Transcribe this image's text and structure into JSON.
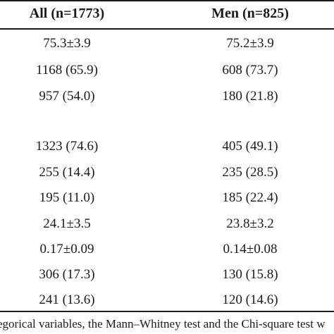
{
  "table": {
    "headers": {
      "all": "All (n=1773)",
      "men": "Men (n=825)"
    },
    "rows": [
      {
        "all": "75.3±3.9",
        "men": "75.2±3.9"
      },
      {
        "all": "1168 (65.9)",
        "men": "608 (73.7)"
      },
      {
        "all": "957 (54.0)",
        "men": "180 (21.8)"
      },
      {
        "all": "",
        "men": ""
      },
      {
        "all": "1323 (74.6)",
        "men": "405 (49.1)"
      },
      {
        "all": "255 (14.4)",
        "men": "235 (28.5)"
      },
      {
        "all": "195 (11.0)",
        "men": "185 (22.4)"
      },
      {
        "all": "24.1±3.5",
        "men": "23.8±3.2"
      },
      {
        "all": "0.17±0.09",
        "men": "0.14±0.08"
      },
      {
        "all": "306 (17.3)",
        "men": "130 (15.8)"
      },
      {
        "all": "241 (13.6)",
        "men": "120 (14.6)"
      }
    ],
    "footnote": "egorical variables, the Mann–Whitney test and the Chi-square test w"
  }
}
